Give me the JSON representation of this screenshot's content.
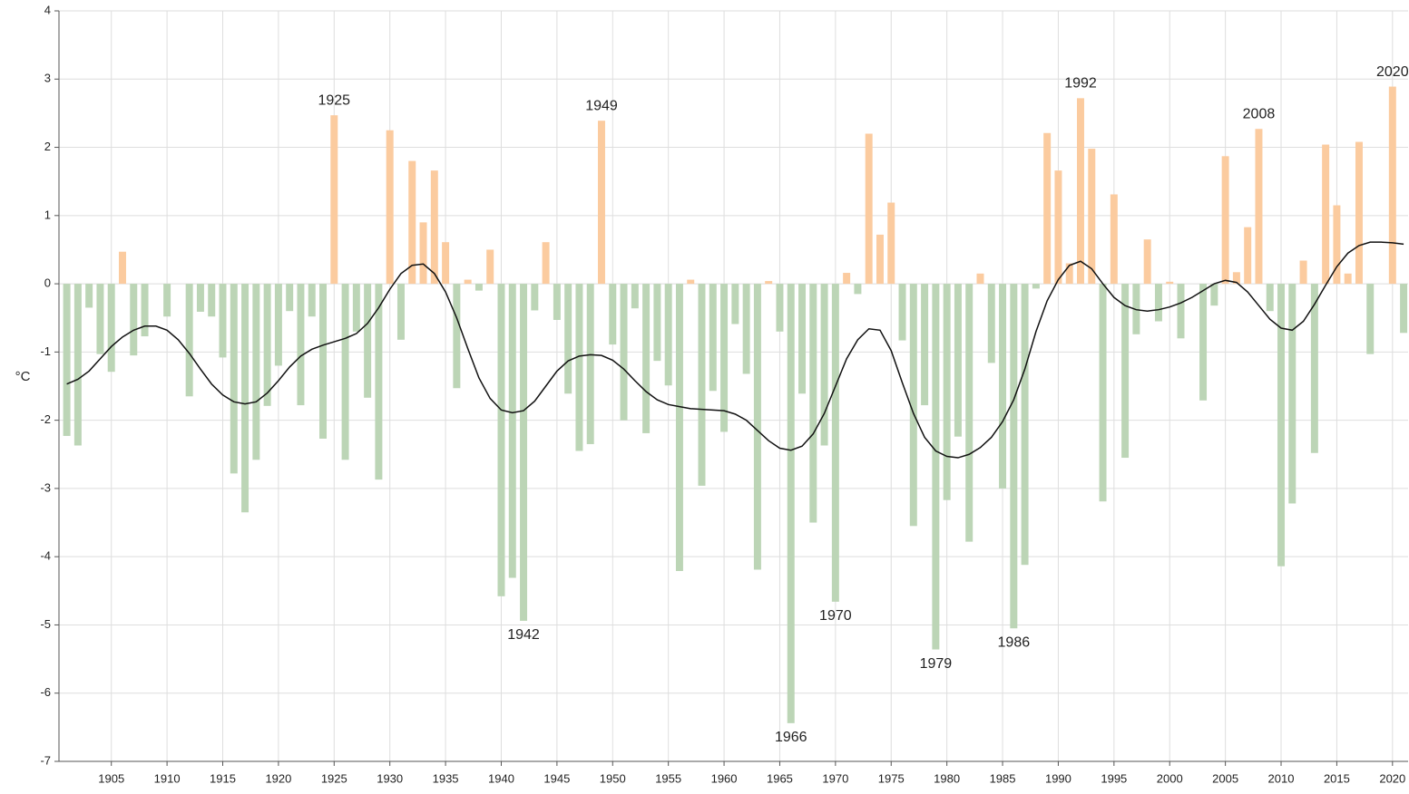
{
  "chart_data": {
    "type": "bar",
    "y_label": "°C",
    "x": [
      1901,
      1902,
      1903,
      1904,
      1905,
      1906,
      1907,
      1908,
      1909,
      1910,
      1911,
      1912,
      1913,
      1914,
      1915,
      1916,
      1917,
      1918,
      1919,
      1920,
      1921,
      1922,
      1923,
      1924,
      1925,
      1926,
      1927,
      1928,
      1929,
      1930,
      1931,
      1932,
      1933,
      1934,
      1935,
      1936,
      1937,
      1938,
      1939,
      1940,
      1941,
      1942,
      1943,
      1944,
      1945,
      1946,
      1947,
      1948,
      1949,
      1950,
      1951,
      1952,
      1953,
      1954,
      1955,
      1956,
      1957,
      1958,
      1959,
      1960,
      1961,
      1962,
      1963,
      1964,
      1965,
      1966,
      1967,
      1968,
      1969,
      1970,
      1971,
      1972,
      1973,
      1974,
      1975,
      1976,
      1977,
      1978,
      1979,
      1980,
      1981,
      1982,
      1983,
      1984,
      1985,
      1986,
      1987,
      1988,
      1989,
      1990,
      1991,
      1992,
      1993,
      1994,
      1995,
      1996,
      1997,
      1998,
      1999,
      2000,
      2001,
      2002,
      2003,
      2004,
      2005,
      2006,
      2007,
      2008,
      2009,
      2010,
      2011,
      2012,
      2013,
      2014,
      2015,
      2016,
      2017,
      2018,
      2019,
      2020,
      2021
    ],
    "series": [
      {
        "type": "bar",
        "positive_color": "#fbcb9f",
        "negative_color": "#bcd5b6",
        "values": [
          -2.23,
          -2.37,
          -0.35,
          -1.03,
          -1.29,
          0.47,
          -1.05,
          -0.77,
          0,
          -0.48,
          0,
          -1.65,
          -0.41,
          -0.48,
          -1.08,
          -2.78,
          -3.35,
          -2.58,
          -1.79,
          -1.2,
          -0.4,
          -1.78,
          -0.48,
          -2.27,
          2.47,
          -2.58,
          -0.7,
          -1.67,
          -2.87,
          2.25,
          -0.82,
          1.8,
          0.9,
          1.66,
          0.61,
          -1.53,
          0.06,
          -0.1,
          0.5,
          -4.58,
          -4.31,
          -4.94,
          -0.39,
          0.61,
          -0.53,
          -1.61,
          -2.45,
          -2.35,
          2.39,
          -0.89,
          -2.0,
          -0.36,
          -2.19,
          -1.13,
          -1.49,
          -4.21,
          0.06,
          -2.96,
          -1.57,
          -2.17,
          -0.59,
          -1.32,
          -4.19,
          0.04,
          -0.7,
          -6.44,
          -1.61,
          -3.5,
          -2.37,
          -4.66,
          0.16,
          -0.15,
          2.2,
          0.72,
          1.19,
          -0.83,
          -3.55,
          -1.78,
          -5.36,
          -3.17,
          -2.24,
          -3.78,
          0.15,
          -1.16,
          -3.0,
          -5.05,
          -4.12,
          -0.07,
          2.21,
          1.66,
          0.3,
          2.72,
          1.98,
          -3.19,
          1.31,
          -2.55,
          -0.74,
          0.65,
          -0.55,
          0.03,
          -0.8,
          0,
          -1.71,
          -0.32,
          1.87,
          0.17,
          0.83,
          2.27,
          -0.4,
          -4.14,
          -3.22,
          0.34,
          -2.48,
          2.04,
          1.15,
          0.15,
          2.08,
          -1.03,
          0,
          2.89,
          -0.72
        ]
      },
      {
        "type": "line",
        "color": "#111111",
        "values": [
          -1.47,
          -1.4,
          -1.28,
          -1.1,
          -0.92,
          -0.78,
          -0.68,
          -0.62,
          -0.62,
          -0.68,
          -0.82,
          -1.02,
          -1.25,
          -1.47,
          -1.63,
          -1.73,
          -1.76,
          -1.73,
          -1.6,
          -1.42,
          -1.22,
          -1.06,
          -0.96,
          -0.9,
          -0.85,
          -0.8,
          -0.73,
          -0.58,
          -0.35,
          -0.08,
          0.15,
          0.27,
          0.29,
          0.15,
          -0.12,
          -0.5,
          -0.95,
          -1.38,
          -1.68,
          -1.85,
          -1.89,
          -1.86,
          -1.72,
          -1.5,
          -1.28,
          -1.13,
          -1.06,
          -1.04,
          -1.05,
          -1.12,
          -1.25,
          -1.42,
          -1.58,
          -1.7,
          -1.77,
          -1.8,
          -1.83,
          -1.84,
          -1.85,
          -1.86,
          -1.91,
          -2.0,
          -2.15,
          -2.3,
          -2.41,
          -2.44,
          -2.38,
          -2.2,
          -1.9,
          -1.5,
          -1.1,
          -0.82,
          -0.66,
          -0.68,
          -0.98,
          -1.45,
          -1.9,
          -2.25,
          -2.45,
          -2.53,
          -2.55,
          -2.5,
          -2.4,
          -2.25,
          -2.02,
          -1.7,
          -1.25,
          -0.7,
          -0.25,
          0.06,
          0.27,
          0.33,
          0.22,
          0,
          -0.2,
          -0.32,
          -0.38,
          -0.4,
          -0.38,
          -0.34,
          -0.28,
          -0.2,
          -0.1,
          0,
          0.05,
          0.02,
          -0.12,
          -0.32,
          -0.52,
          -0.65,
          -0.68,
          -0.55,
          -0.3,
          -0.02,
          0.25,
          0.45,
          0.56,
          0.61,
          0.61,
          0.6,
          0.58
        ]
      }
    ],
    "annotations": [
      {
        "text": "1925",
        "x": 1925
      },
      {
        "text": "1942",
        "x": 1942
      },
      {
        "text": "1949",
        "x": 1949
      },
      {
        "text": "1966",
        "x": 1966
      },
      {
        "text": "1970",
        "x": 1970
      },
      {
        "text": "1979",
        "x": 1979
      },
      {
        "text": "1986",
        "x": 1986
      },
      {
        "text": "1992",
        "x": 1992
      },
      {
        "text": "2008",
        "x": 2008
      },
      {
        "text": "2020",
        "x": 2020
      }
    ],
    "xlim": [
      1900.3,
      2021.4
    ],
    "xticks": [
      1905,
      1910,
      1915,
      1920,
      1925,
      1930,
      1935,
      1940,
      1945,
      1950,
      1955,
      1960,
      1965,
      1970,
      1975,
      1980,
      1985,
      1990,
      1995,
      2000,
      2005,
      2010,
      2015,
      2020
    ],
    "ylim": [
      -7,
      4
    ],
    "yticks": [
      -7,
      -6,
      -5,
      -4,
      -3,
      -2,
      -1,
      0,
      1,
      2,
      3,
      4
    ],
    "grid": true
  }
}
